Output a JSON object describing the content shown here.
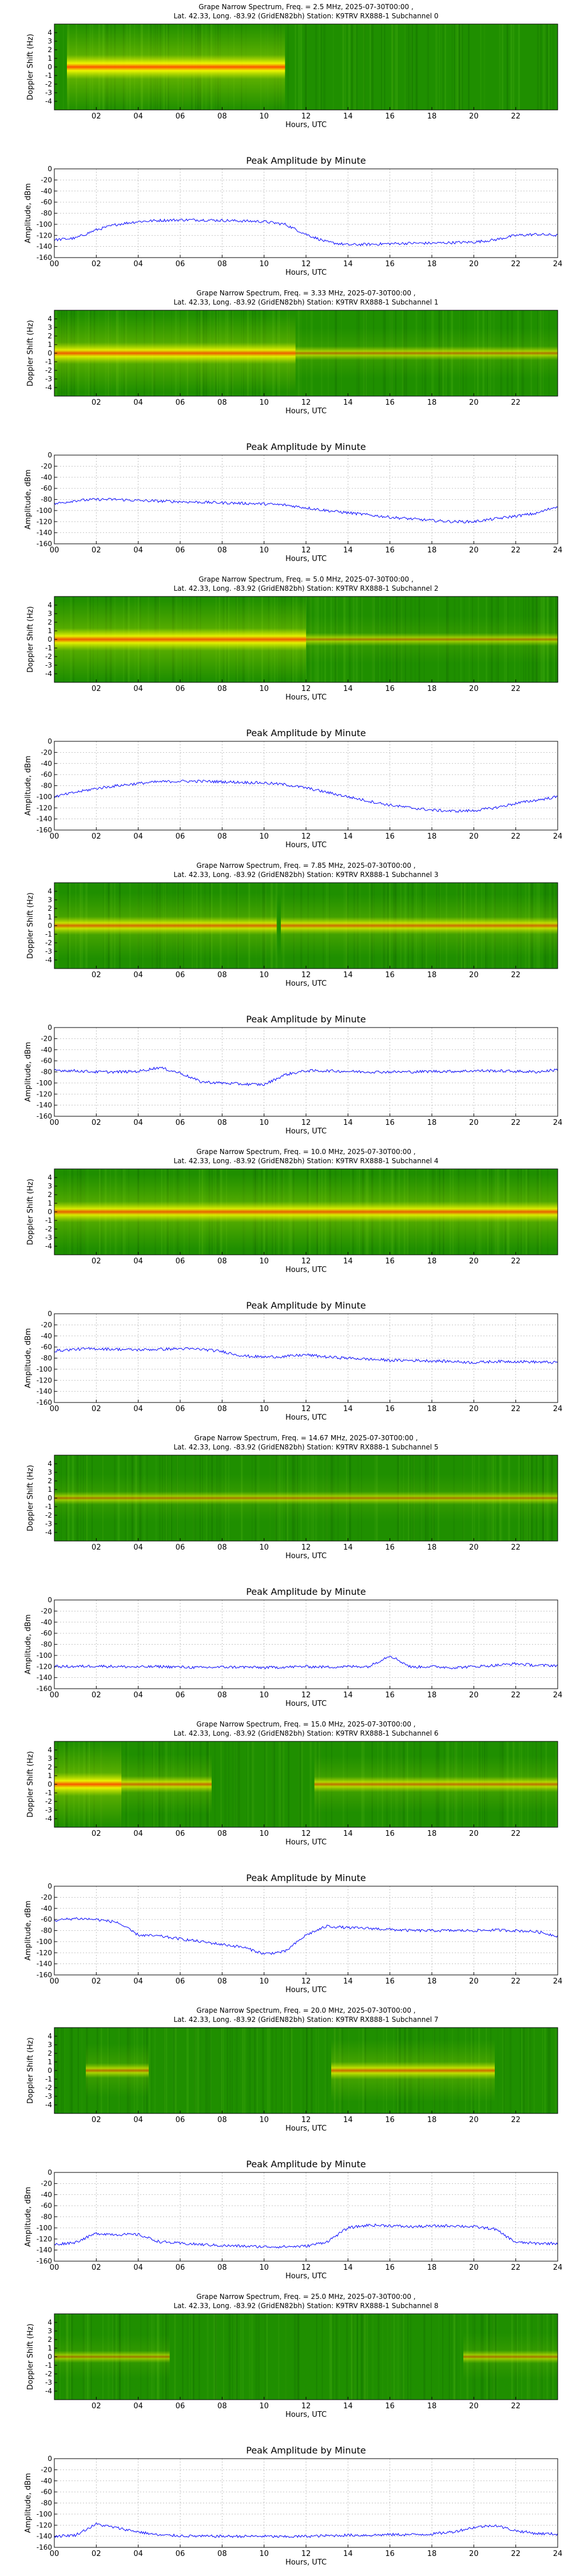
{
  "x_ticks_spec": [
    "02",
    "04",
    "06",
    "08",
    "10",
    "12",
    "14",
    "16",
    "18",
    "20",
    "22"
  ],
  "x_ticks_line": [
    "00",
    "02",
    "04",
    "06",
    "08",
    "10",
    "12",
    "14",
    "16",
    "18",
    "20",
    "22",
    "24"
  ],
  "y_ticks_spec": [
    "4",
    "3",
    "2",
    "1",
    "0",
    "-1",
    "-2",
    "-3",
    "-4"
  ],
  "y_ticks_line": [
    "0",
    "-20",
    "-40",
    "-60",
    "-80",
    "-100",
    "-120",
    "-140",
    "-160"
  ],
  "chart_data": [
    {
      "type": "heatmap",
      "title": "Grape Narrow Spectrum, Freq. = 2.5 MHz, 2025-07-30T00:00 ,",
      "subtitle": "Lat. 42.33, Long. -83.92 (GridEN82bh) Station: K9TRV RX888-1 Subchannel 0",
      "xlabel": "Hours, UTC",
      "ylabel": "Doppler Shift (Hz)",
      "xlim": [
        0,
        24
      ],
      "ylim": [
        -5,
        5
      ],
      "signal": [
        {
          "start": 0.6,
          "end": 11.0,
          "intensity": 0.95
        }
      ]
    },
    {
      "type": "line",
      "title": "Peak Amplitude by Minute",
      "xlabel": "Hours, UTC",
      "ylabel": "Amplitude, dBm",
      "xlim": [
        0,
        24
      ],
      "ylim": [
        -160,
        0
      ],
      "x": [
        0,
        1,
        2,
        3,
        4,
        5,
        6,
        7,
        8,
        9,
        10,
        11,
        12,
        13,
        14,
        15,
        16,
        17,
        18,
        19,
        20,
        21,
        22,
        23,
        24
      ],
      "values": [
        -128,
        -125,
        -110,
        -100,
        -95,
        -93,
        -92,
        -92,
        -93,
        -94,
        -95,
        -100,
        -118,
        -132,
        -137,
        -136,
        -135,
        -134,
        -134,
        -133,
        -132,
        -128,
        -120,
        -118,
        -120
      ]
    },
    {
      "type": "heatmap",
      "title": "Grape Narrow Spectrum, Freq. = 3.33 MHz, 2025-07-30T00:00 ,",
      "subtitle": "Lat. 42.33, Long. -83.92 (GridEN82bh) Station: K9TRV RX888-1 Subchannel 1",
      "xlabel": "Hours, UTC",
      "ylabel": "Doppler Shift (Hz)",
      "xlim": [
        0,
        24
      ],
      "ylim": [
        -5,
        5
      ],
      "signal": [
        {
          "start": 0.0,
          "end": 11.5,
          "intensity": 0.8
        },
        {
          "start": 11.5,
          "end": 24.0,
          "intensity": 0.35
        }
      ]
    },
    {
      "type": "line",
      "title": "Peak Amplitude by Minute",
      "xlabel": "Hours, UTC",
      "ylabel": "Amplitude, dBm",
      "xlim": [
        0,
        24
      ],
      "ylim": [
        -160,
        0
      ],
      "x": [
        0,
        1,
        2,
        3,
        4,
        5,
        6,
        7,
        8,
        9,
        10,
        11,
        12,
        13,
        14,
        15,
        16,
        17,
        18,
        19,
        20,
        21,
        22,
        23,
        24
      ],
      "values": [
        -88,
        -82,
        -80,
        -80,
        -82,
        -83,
        -84,
        -85,
        -86,
        -87,
        -88,
        -90,
        -95,
        -100,
        -104,
        -108,
        -112,
        -115,
        -118,
        -120,
        -120,
        -115,
        -110,
        -105,
        -92
      ]
    },
    {
      "type": "heatmap",
      "title": "Grape Narrow Spectrum, Freq. = 5.0 MHz, 2025-07-30T00:00 ,",
      "subtitle": "Lat. 42.33, Long. -83.92 (GridEN82bh) Station: K9TRV RX888-1 Subchannel 2",
      "xlabel": "Hours, UTC",
      "ylabel": "Doppler Shift (Hz)",
      "xlim": [
        0,
        24
      ],
      "ylim": [
        -5,
        5
      ],
      "signal": [
        {
          "start": 0.0,
          "end": 12.0,
          "intensity": 0.85
        },
        {
          "start": 12.0,
          "end": 24.0,
          "intensity": 0.3
        }
      ]
    },
    {
      "type": "line",
      "title": "Peak Amplitude by Minute",
      "xlabel": "Hours, UTC",
      "ylabel": "Amplitude, dBm",
      "xlim": [
        0,
        24
      ],
      "ylim": [
        -160,
        0
      ],
      "x": [
        0,
        1,
        2,
        3,
        4,
        5,
        6,
        7,
        8,
        9,
        10,
        11,
        12,
        13,
        14,
        15,
        16,
        17,
        18,
        19,
        20,
        21,
        22,
        23,
        24
      ],
      "values": [
        -100,
        -92,
        -85,
        -80,
        -76,
        -73,
        -72,
        -72,
        -73,
        -74,
        -75,
        -78,
        -84,
        -92,
        -100,
        -108,
        -115,
        -120,
        -124,
        -126,
        -125,
        -120,
        -112,
        -106,
        -100
      ]
    },
    {
      "type": "heatmap",
      "title": "Grape Narrow Spectrum, Freq. = 7.85 MHz, 2025-07-30T00:00 ,",
      "subtitle": "Lat. 42.33, Long. -83.92 (GridEN82bh) Station: K9TRV RX888-1 Subchannel 3",
      "xlabel": "Hours, UTC",
      "ylabel": "Doppler Shift (Hz)",
      "xlim": [
        0,
        24
      ],
      "ylim": [
        -5,
        5
      ],
      "signal": [
        {
          "start": 0.0,
          "end": 10.6,
          "intensity": 0.6
        },
        {
          "start": 10.8,
          "end": 24.0,
          "intensity": 0.55
        }
      ]
    },
    {
      "type": "line",
      "title": "Peak Amplitude by Minute",
      "xlabel": "Hours, UTC",
      "ylabel": "Amplitude, dBm",
      "xlim": [
        0,
        24
      ],
      "ylim": [
        -160,
        0
      ],
      "x": [
        0,
        1,
        2,
        3,
        4,
        5,
        6,
        7,
        8,
        9,
        10,
        11,
        12,
        13,
        14,
        15,
        16,
        17,
        18,
        19,
        20,
        21,
        22,
        23,
        24
      ],
      "values": [
        -77,
        -78,
        -80,
        -80,
        -79,
        -72,
        -82,
        -98,
        -100,
        -102,
        -103,
        -85,
        -78,
        -78,
        -79,
        -80,
        -80,
        -80,
        -79,
        -79,
        -78,
        -78,
        -79,
        -80,
        -76
      ]
    },
    {
      "type": "heatmap",
      "title": "Grape Narrow Spectrum, Freq. = 10.0 MHz, 2025-07-30T00:00 ,",
      "subtitle": "Lat. 42.33, Long. -83.92 (GridEN82bh) Station: K9TRV RX888-1 Subchannel 4",
      "xlabel": "Hours, UTC",
      "ylabel": "Doppler Shift (Hz)",
      "xlim": [
        0,
        24
      ],
      "ylim": [
        -5,
        5
      ],
      "signal": [
        {
          "start": 0.0,
          "end": 24.0,
          "intensity": 0.75
        }
      ]
    },
    {
      "type": "line",
      "title": "Peak Amplitude by Minute",
      "xlabel": "Hours, UTC",
      "ylabel": "Amplitude, dBm",
      "xlim": [
        0,
        24
      ],
      "ylim": [
        -160,
        0
      ],
      "x": [
        0,
        1,
        2,
        3,
        4,
        5,
        6,
        7,
        8,
        9,
        10,
        11,
        12,
        13,
        14,
        15,
        16,
        17,
        18,
        19,
        20,
        21,
        22,
        23,
        24
      ],
      "values": [
        -67,
        -64,
        -63,
        -64,
        -65,
        -64,
        -63,
        -64,
        -68,
        -76,
        -78,
        -77,
        -74,
        -78,
        -80,
        -82,
        -84,
        -84,
        -85,
        -86,
        -88,
        -86,
        -86,
        -87,
        -88
      ]
    },
    {
      "type": "heatmap",
      "title": "Grape Narrow Spectrum, Freq. = 14.67 MHz, 2025-07-30T00:00 ,",
      "subtitle": "Lat. 42.33, Long. -83.92 (GridEN82bh) Station: K9TRV RX888-1 Subchannel 5",
      "xlabel": "Hours, UTC",
      "ylabel": "Doppler Shift (Hz)",
      "xlim": [
        0,
        24
      ],
      "ylim": [
        -5,
        5
      ],
      "signal": [
        {
          "start": 0.0,
          "end": 24.0,
          "intensity": 0.3
        }
      ]
    },
    {
      "type": "line",
      "title": "Peak Amplitude by Minute",
      "xlabel": "Hours, UTC",
      "ylabel": "Amplitude, dBm",
      "xlim": [
        0,
        24
      ],
      "ylim": [
        -160,
        0
      ],
      "x": [
        0,
        1,
        2,
        3,
        4,
        5,
        6,
        7,
        8,
        9,
        10,
        11,
        12,
        13,
        14,
        15,
        16,
        17,
        18,
        19,
        20,
        21,
        22,
        23,
        24
      ],
      "values": [
        -120,
        -120,
        -119,
        -120,
        -121,
        -120,
        -121,
        -122,
        -121,
        -121,
        -122,
        -121,
        -120,
        -121,
        -120,
        -120,
        -100,
        -121,
        -120,
        -122,
        -120,
        -118,
        -115,
        -118,
        -118
      ]
    },
    {
      "type": "heatmap",
      "title": "Grape Narrow Spectrum, Freq. = 15.0 MHz, 2025-07-30T00:00 ,",
      "subtitle": "Lat. 42.33, Long. -83.92 (GridEN82bh) Station: K9TRV RX888-1 Subchannel 6",
      "xlabel": "Hours, UTC",
      "ylabel": "Doppler Shift (Hz)",
      "xlim": [
        0,
        24
      ],
      "ylim": [
        -5,
        5
      ],
      "signal": [
        {
          "start": 0.0,
          "end": 3.2,
          "intensity": 0.9
        },
        {
          "start": 3.2,
          "end": 7.5,
          "intensity": 0.5
        },
        {
          "start": 12.4,
          "end": 24.0,
          "intensity": 0.45
        }
      ]
    },
    {
      "type": "line",
      "title": "Peak Amplitude by Minute",
      "xlabel": "Hours, UTC",
      "ylabel": "Amplitude, dBm",
      "xlim": [
        0,
        24
      ],
      "ylim": [
        -160,
        0
      ],
      "x": [
        0,
        1,
        2,
        3,
        4,
        5,
        6,
        7,
        8,
        9,
        10,
        11,
        12,
        13,
        14,
        15,
        16,
        17,
        18,
        19,
        20,
        21,
        22,
        23,
        24
      ],
      "values": [
        -62,
        -58,
        -60,
        -65,
        -88,
        -90,
        -95,
        -100,
        -105,
        -110,
        -122,
        -118,
        -88,
        -72,
        -75,
        -76,
        -78,
        -80,
        -80,
        -80,
        -80,
        -79,
        -80,
        -82,
        -90
      ]
    },
    {
      "type": "heatmap",
      "title": "Grape Narrow Spectrum, Freq. = 20.0 MHz, 2025-07-30T00:00 ,",
      "subtitle": "Lat. 42.33, Long. -83.92 (GridEN82bh) Station: K9TRV RX888-1 Subchannel 7",
      "xlabel": "Hours, UTC",
      "ylabel": "Doppler Shift (Hz)",
      "xlim": [
        0,
        24
      ],
      "ylim": [
        -5,
        5
      ],
      "signal": [
        {
          "start": 1.5,
          "end": 4.5,
          "intensity": 0.4
        },
        {
          "start": 13.2,
          "end": 21.0,
          "intensity": 0.55
        }
      ]
    },
    {
      "type": "line",
      "title": "Peak Amplitude by Minute",
      "xlabel": "Hours, UTC",
      "ylabel": "Amplitude, dBm",
      "xlim": [
        0,
        24
      ],
      "ylim": [
        -160,
        0
      ],
      "x": [
        0,
        1,
        2,
        3,
        4,
        5,
        6,
        7,
        8,
        9,
        10,
        11,
        12,
        13,
        14,
        15,
        16,
        17,
        18,
        19,
        20,
        21,
        22,
        23,
        24
      ],
      "values": [
        -130,
        -126,
        -110,
        -112,
        -112,
        -125,
        -128,
        -130,
        -132,
        -133,
        -134,
        -134,
        -133,
        -125,
        -100,
        -95,
        -96,
        -98,
        -97,
        -96,
        -98,
        -102,
        -126,
        -128,
        -128
      ]
    },
    {
      "type": "heatmap",
      "title": "Grape Narrow Spectrum, Freq. = 25.0 MHz, 2025-07-30T00:00 ,",
      "subtitle": "Lat. 42.33, Long. -83.92 (GridEN82bh) Station: K9TRV RX888-1 Subchannel 8",
      "xlabel": "Hours, UTC",
      "ylabel": "Doppler Shift (Hz)",
      "xlim": [
        0,
        24
      ],
      "ylim": [
        -5,
        5
      ],
      "signal": [
        {
          "start": 0.0,
          "end": 5.5,
          "intensity": 0.25
        },
        {
          "start": 19.5,
          "end": 24.0,
          "intensity": 0.3
        }
      ]
    },
    {
      "type": "line",
      "title": "Peak Amplitude by Minute",
      "xlabel": "Hours, UTC",
      "ylabel": "Amplitude, dBm",
      "xlim": [
        0,
        24
      ],
      "ylim": [
        -160,
        0
      ],
      "x": [
        0,
        1,
        2,
        3,
        4,
        5,
        6,
        7,
        8,
        9,
        10,
        11,
        12,
        13,
        14,
        15,
        16,
        17,
        18,
        19,
        20,
        21,
        22,
        23,
        24
      ],
      "values": [
        -140,
        -138,
        -118,
        -125,
        -132,
        -138,
        -139,
        -140,
        -140,
        -140,
        -140,
        -141,
        -140,
        -139,
        -138,
        -138,
        -137,
        -137,
        -136,
        -132,
        -124,
        -120,
        -130,
        -135,
        -136
      ]
    }
  ]
}
